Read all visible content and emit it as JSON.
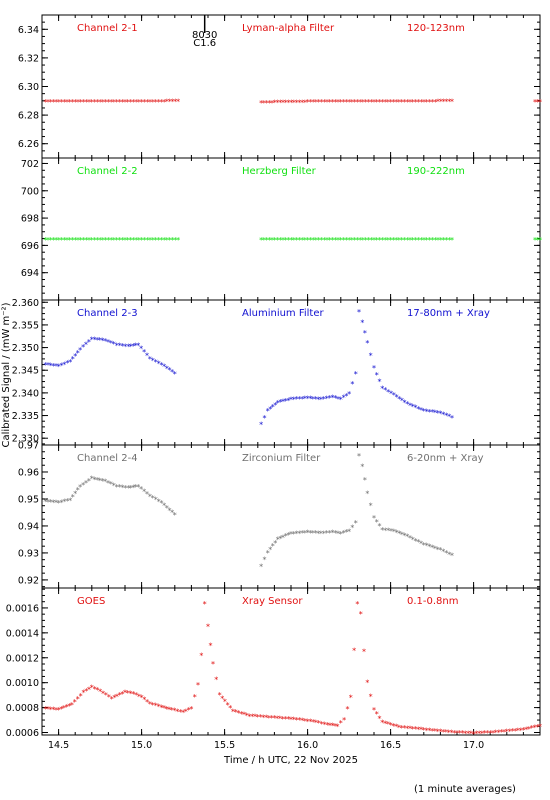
{
  "x_axis": {
    "label": "Time / h UTC, 22 Nov 2025",
    "range": [
      14.4,
      17.4
    ],
    "ticks": [
      14.5,
      15.0,
      15.5,
      16.0,
      16.5,
      17.0
    ]
  },
  "y_axis_label": "Calibrated Signal / (mW m⁻²)",
  "footnote": "(1 minute averages)",
  "flare_marker": {
    "time": 15.38,
    "label_top": "8030",
    "label_bottom": "C1.6"
  },
  "panels": [
    {
      "channel": "Channel 2-1",
      "filter": "Lyman-alpha Filter",
      "band": "120-123nm",
      "color": "#e01010",
      "ylim": [
        6.25,
        6.35
      ],
      "yticks": [
        "6.26",
        "6.28",
        "6.30",
        "6.32",
        "6.34"
      ],
      "ytick_values": [
        6.26,
        6.28,
        6.3,
        6.32,
        6.34
      ]
    },
    {
      "channel": "Channel 2-2",
      "filter": "Herzberg Filter",
      "band": "190-222nm",
      "color": "#10e010",
      "ylim": [
        692,
        702.4
      ],
      "yticks": [
        "694",
        "696",
        "698",
        "700",
        "702"
      ],
      "ytick_values": [
        694,
        696,
        698,
        700,
        702
      ]
    },
    {
      "channel": "Channel 2-3",
      "filter": "Aluminium Filter",
      "band": "17-80nm + Xray",
      "color": "#1010d0",
      "ylim": [
        2.3285,
        2.3605
      ],
      "yticks": [
        "2.330",
        "2.335",
        "2.340",
        "2.345",
        "2.350",
        "2.355",
        "2.360"
      ],
      "ytick_values": [
        2.33,
        2.335,
        2.34,
        2.345,
        2.35,
        2.355,
        2.36
      ]
    },
    {
      "channel": "Channel 2-4",
      "filter": "Zirconium Filter",
      "band": "6-20nm + Xray",
      "color": "#707070",
      "ylim": [
        0.917,
        0.97
      ],
      "yticks": [
        "0.92",
        "0.93",
        "0.94",
        "0.95",
        "0.96",
        "0.97"
      ],
      "ytick_values": [
        0.92,
        0.93,
        0.94,
        0.95,
        0.96,
        0.97
      ]
    },
    {
      "channel": "GOES",
      "filter": "Xray Sensor",
      "band": "0.1-0.8nm",
      "color": "#e01010",
      "ylim": [
        0.00058,
        0.00176
      ],
      "yticks": [
        "0.0006",
        "0.0008",
        "0.0010",
        "0.0012",
        "0.0014",
        "0.0016"
      ],
      "ytick_values": [
        0.0006,
        0.0008,
        0.001,
        0.0012,
        0.0014,
        0.0016
      ]
    }
  ],
  "chart_data": [
    {
      "type": "scatter",
      "title": "Channel 2-1",
      "segments": [
        {
          "x": [
            14.42,
            14.6,
            14.8,
            15.0,
            15.22
          ],
          "y": [
            6.289,
            6.289,
            6.289,
            6.289,
            6.2895
          ]
        },
        {
          "x": [
            15.72,
            16.0,
            16.3,
            16.6,
            16.87
          ],
          "y": [
            6.2885,
            6.289,
            6.289,
            6.289,
            6.2895
          ]
        },
        {
          "x": [
            17.37,
            17.4
          ],
          "y": [
            6.289,
            6.289
          ]
        }
      ]
    },
    {
      "type": "scatter",
      "title": "Channel 2-2",
      "segments": [
        {
          "x": [
            14.42,
            14.6,
            14.8,
            15.0,
            15.22
          ],
          "y": [
            696.4,
            696.4,
            696.4,
            696.4,
            696.4
          ]
        },
        {
          "x": [
            15.72,
            16.0,
            16.3,
            16.6,
            16.87
          ],
          "y": [
            696.4,
            696.4,
            696.4,
            696.4,
            696.4
          ]
        },
        {
          "x": [
            17.37,
            17.4
          ],
          "y": [
            696.4,
            696.4
          ]
        }
      ]
    },
    {
      "type": "scatter",
      "title": "Channel 2-3",
      "segments": [
        {
          "x": [
            14.42,
            14.5,
            14.57,
            14.63,
            14.7,
            14.78,
            14.85,
            14.92,
            14.98,
            15.05,
            15.12,
            15.2
          ],
          "y": [
            2.3462,
            2.3458,
            2.3468,
            2.3495,
            2.3518,
            2.3515,
            2.3505,
            2.3502,
            2.3505,
            2.3475,
            2.3462,
            2.3442
          ]
        },
        {
          "x": [
            15.72,
            15.76,
            15.82,
            15.9,
            16.0,
            16.08,
            16.15,
            16.2,
            16.25,
            16.29,
            16.31,
            16.33,
            16.36,
            16.4,
            16.45,
            16.52,
            16.6,
            16.7,
            16.8,
            16.87
          ],
          "y": [
            2.333,
            2.336,
            2.3378,
            2.3385,
            2.3388,
            2.3385,
            2.339,
            2.3385,
            2.3398,
            2.3442,
            2.3578,
            2.3555,
            2.351,
            2.3455,
            2.341,
            2.3395,
            2.3375,
            2.336,
            2.3355,
            2.3345
          ]
        }
      ]
    },
    {
      "type": "scatter",
      "title": "Channel 2-4",
      "segments": [
        {
          "x": [
            14.42,
            14.5,
            14.57,
            14.63,
            14.7,
            14.78,
            14.85,
            14.92,
            14.98,
            15.05,
            15.12,
            15.2
          ],
          "y": [
            0.949,
            0.9485,
            0.9495,
            0.9545,
            0.9575,
            0.9565,
            0.9545,
            0.954,
            0.9545,
            0.951,
            0.9485,
            0.944
          ]
        },
        {
          "x": [
            15.72,
            15.76,
            15.82,
            15.9,
            16.0,
            16.08,
            16.15,
            16.2,
            16.25,
            16.29,
            16.31,
            16.33,
            16.36,
            16.4,
            16.45,
            16.52,
            16.6,
            16.7,
            16.8,
            16.87
          ],
          "y": [
            0.925,
            0.93,
            0.935,
            0.937,
            0.9375,
            0.9372,
            0.9375,
            0.937,
            0.938,
            0.941,
            0.966,
            0.962,
            0.952,
            0.943,
            0.9385,
            0.938,
            0.936,
            0.933,
            0.931,
            0.929
          ]
        }
      ]
    },
    {
      "type": "scatter",
      "title": "GOES",
      "segments": [
        {
          "x": [
            14.42,
            14.5,
            14.58,
            14.65,
            14.7,
            14.75,
            14.82,
            14.9,
            14.95,
            15.0,
            15.05,
            15.12,
            15.18,
            15.25,
            15.3,
            15.34,
            15.36,
            15.38,
            15.4,
            15.43,
            15.47,
            15.55,
            15.65,
            15.75,
            15.85,
            15.95,
            16.05,
            16.12,
            16.18,
            16.22,
            16.26,
            16.28,
            16.3,
            16.32,
            16.34,
            16.36,
            16.4,
            16.45,
            16.55,
            16.7,
            16.85,
            17.0,
            17.15,
            17.3,
            17.4
          ],
          "y": [
            0.00079,
            0.00078,
            0.00082,
            0.00092,
            0.00096,
            0.00093,
            0.00087,
            0.00092,
            0.00091,
            0.00088,
            0.00083,
            0.0008,
            0.00078,
            0.00076,
            0.00079,
            0.00098,
            0.00122,
            0.00163,
            0.00145,
            0.00115,
            0.0009,
            0.00077,
            0.00073,
            0.00072,
            0.00071,
            0.0007,
            0.00068,
            0.00066,
            0.00065,
            0.0007,
            0.00088,
            0.00126,
            0.00163,
            0.00155,
            0.00125,
            0.001,
            0.00078,
            0.00068,
            0.00064,
            0.00062,
            0.0006,
            0.00059,
            0.0006,
            0.00062,
            0.00065
          ]
        }
      ]
    }
  ]
}
